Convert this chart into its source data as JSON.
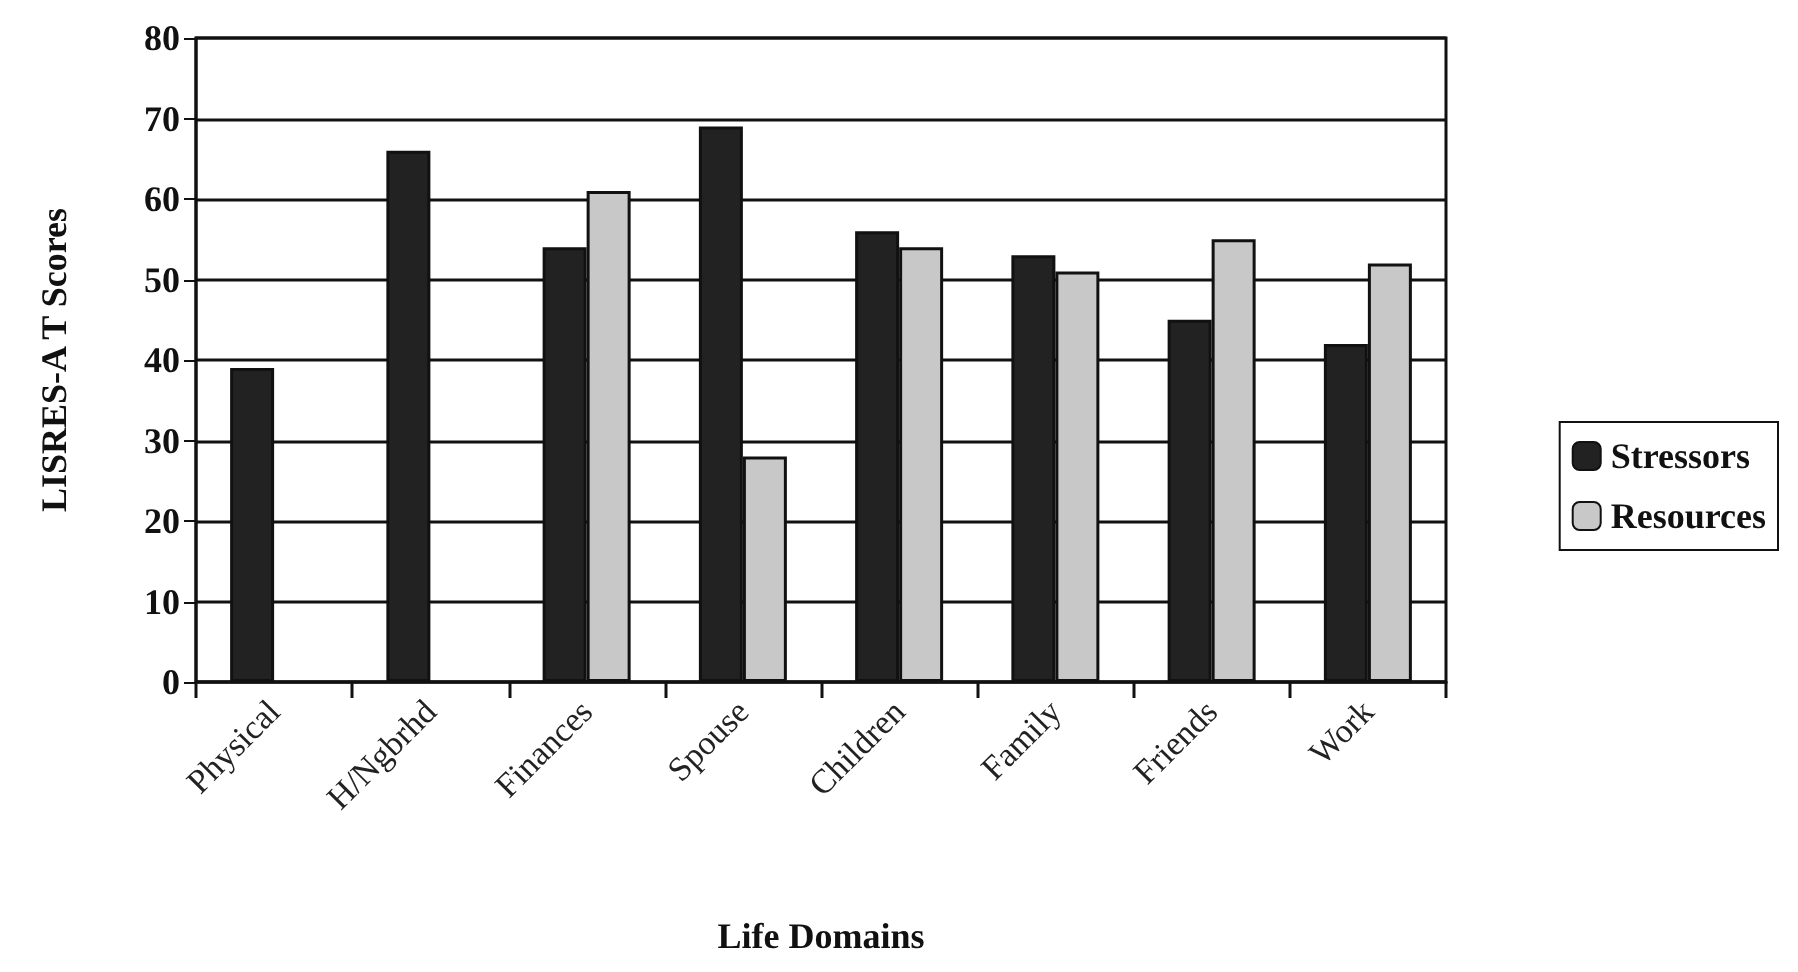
{
  "chart_data": {
    "type": "bar",
    "xlabel": "Life Domains",
    "ylabel": "LISRES-A T Scores",
    "categories": [
      "Physical",
      "H/Ngbrhd",
      "Finances",
      "Spouse",
      "Children",
      "Family",
      "Friends",
      "Work"
    ],
    "series": [
      {
        "name": "Stressors",
        "color": "#222222",
        "values": [
          39,
          66,
          54,
          69,
          56,
          53,
          45,
          42
        ]
      },
      {
        "name": "Resources",
        "color": "#c8c8c8",
        "values": [
          null,
          null,
          61,
          28,
          54,
          51,
          55,
          52
        ]
      }
    ],
    "ylim": [
      0,
      80
    ],
    "yticks": [
      0,
      10,
      20,
      30,
      40,
      50,
      60,
      70,
      80
    ],
    "grid": "y",
    "legend": "right"
  }
}
